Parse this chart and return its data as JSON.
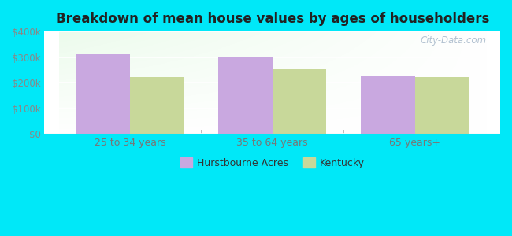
{
  "title": "Breakdown of mean house values by ages of householders",
  "categories": [
    "25 to 34 years",
    "35 to 64 years",
    "65 years+"
  ],
  "hurstbourne_values": [
    312000,
    298000,
    225000
  ],
  "kentucky_values": [
    222000,
    252000,
    223000
  ],
  "hurstbourne_color": "#c9a8e0",
  "kentucky_color": "#c8d89a",
  "background_outer": "#00e8f8",
  "ylim": [
    0,
    400000
  ],
  "yticks": [
    0,
    100000,
    200000,
    300000,
    400000
  ],
  "ytick_labels": [
    "$0",
    "$100k",
    "$200k",
    "$300k",
    "$400k"
  ],
  "legend_labels": [
    "Hurstbourne Acres",
    "Kentucky"
  ],
  "bar_width": 0.38
}
